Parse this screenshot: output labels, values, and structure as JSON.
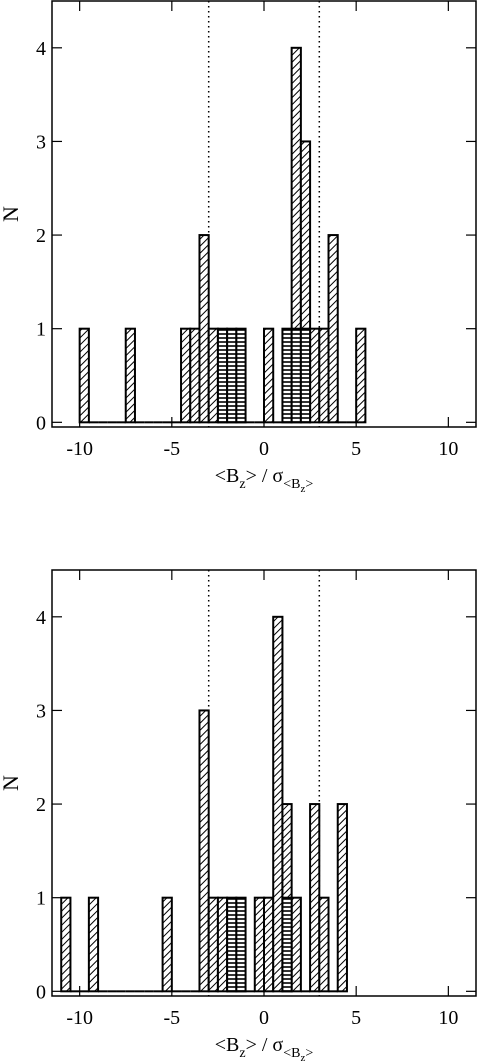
{
  "chart_data": [
    {
      "type": "histogram",
      "bins": [
        -11.5,
        -11,
        -10.5,
        -10,
        -9.5,
        -9,
        -8.5,
        -8,
        -7.5,
        -7,
        -6.5,
        -6,
        -5.5,
        -5,
        -4.5,
        -4,
        -3.5,
        -3,
        -2.5,
        -2,
        -1.5,
        -1,
        -0.5,
        0,
        0.5,
        1,
        1.5,
        2,
        2.5,
        3,
        3.5,
        4,
        4.5,
        5,
        5.5,
        6,
        6.5,
        7,
        7.5,
        8,
        8.5,
        9,
        9.5,
        10,
        10.5,
        11,
        11.5
      ],
      "series": [
        {
          "color": "#000000",
          "hatch": "diagonal",
          "values": [
            0,
            0,
            0,
            1,
            0,
            0,
            0,
            0,
            1,
            0,
            0,
            0,
            0,
            0,
            1,
            1,
            2,
            1,
            0,
            0,
            0,
            0,
            0,
            1,
            0,
            0,
            4,
            3,
            1,
            1,
            2,
            0,
            0,
            1,
            0,
            0,
            0,
            0,
            0,
            0,
            0,
            0,
            0,
            0,
            0,
            0
          ]
        },
        {
          "color": "#000000",
          "hatch": "horizontal",
          "values": [
            0,
            0,
            0,
            0,
            0,
            0,
            0,
            0,
            0,
            0,
            0,
            0,
            0,
            0,
            0,
            0,
            0,
            0,
            1,
            1,
            1,
            0,
            0,
            0,
            0,
            1,
            1,
            1,
            0,
            0,
            0,
            0,
            0,
            0,
            0,
            0,
            0,
            0,
            0,
            0,
            0,
            0,
            0,
            0,
            0,
            0
          ]
        }
      ],
      "reference_lines": [
        -3,
        3
      ],
      "xlim": [
        -11.5,
        11.5
      ],
      "xticks": [
        -10,
        -5,
        0,
        5,
        10
      ],
      "ylim": [
        -0.05,
        4.5
      ],
      "yticks": [
        0,
        1,
        2,
        3,
        4
      ],
      "ylabel": "N",
      "xlabel": [
        {
          "text": "<B",
          "level": 0
        },
        {
          "text": "z",
          "level": 1
        },
        {
          "text": "> / σ",
          "level": 0
        },
        {
          "text": "<B",
          "level": 1
        },
        {
          "text": "z",
          "level": 2
        },
        {
          "text": ">",
          "level": 1
        }
      ]
    },
    {
      "type": "histogram",
      "bins": [
        -11.5,
        -11,
        -10.5,
        -10,
        -9.5,
        -9,
        -8.5,
        -8,
        -7.5,
        -7,
        -6.5,
        -6,
        -5.5,
        -5,
        -4.5,
        -4,
        -3.5,
        -3,
        -2.5,
        -2,
        -1.5,
        -1,
        -0.5,
        0,
        0.5,
        1,
        1.5,
        2,
        2.5,
        3,
        3.5,
        4,
        4.5,
        5,
        5.5,
        6,
        6.5,
        7,
        7.5,
        8,
        8.5,
        9,
        9.5,
        10,
        10.5,
        11,
        11.5
      ],
      "series": [
        {
          "color": "#000000",
          "hatch": "diagonal",
          "values": [
            0,
            1,
            0,
            0,
            1,
            0,
            0,
            0,
            0,
            0,
            0,
            0,
            1,
            0,
            0,
            0,
            3,
            1,
            1,
            0,
            0,
            0,
            1,
            1,
            4,
            2,
            1,
            0,
            2,
            1,
            0,
            2,
            0,
            0,
            0,
            0,
            0,
            0,
            0,
            0,
            0,
            0,
            0,
            0,
            0,
            0
          ]
        },
        {
          "color": "#000000",
          "hatch": "horizontal",
          "values": [
            0,
            0,
            0,
            0,
            0,
            0,
            0,
            0,
            0,
            0,
            0,
            0,
            0,
            0,
            0,
            0,
            0,
            0,
            0,
            1,
            1,
            0,
            0,
            0,
            0,
            1,
            0,
            0,
            0,
            0,
            0,
            0,
            0,
            0,
            0,
            0,
            0,
            0,
            0,
            0,
            0,
            0,
            0,
            0,
            0,
            0
          ]
        }
      ],
      "reference_lines": [
        -3,
        3
      ],
      "xlim": [
        -11.5,
        11.5
      ],
      "xticks": [
        -10,
        -5,
        0,
        5,
        10
      ],
      "ylim": [
        -0.05,
        4.5
      ],
      "yticks": [
        0,
        1,
        2,
        3,
        4
      ],
      "ylabel": "N",
      "xlabel": [
        {
          "text": "<B",
          "level": 0
        },
        {
          "text": "z",
          "level": 1
        },
        {
          "text": "> / σ",
          "level": 0
        },
        {
          "text": "<B",
          "level": 1
        },
        {
          "text": "z",
          "level": 2
        },
        {
          "text": ">",
          "level": 1
        }
      ]
    }
  ]
}
